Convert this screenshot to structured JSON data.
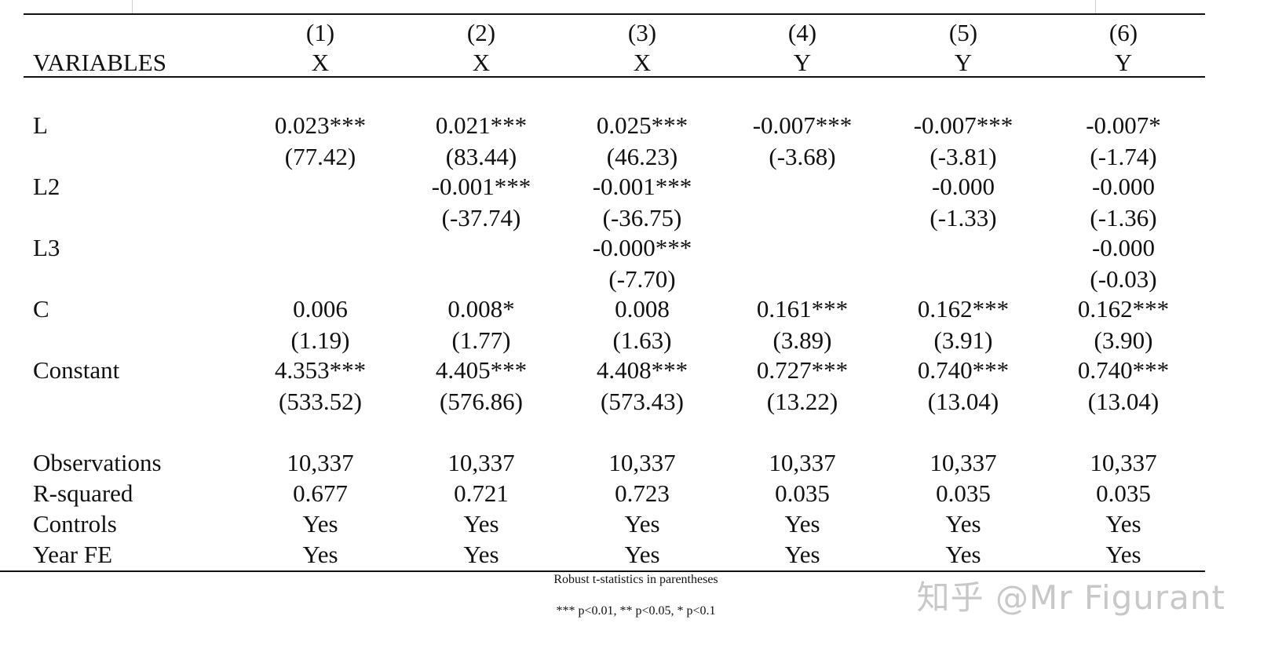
{
  "header": {
    "col_numbers": [
      "(1)",
      "(2)",
      "(3)",
      "(4)",
      "(5)",
      "(6)"
    ],
    "variables_label": "VARIABLES",
    "dep_vars": [
      "X",
      "X",
      "X",
      "Y",
      "Y",
      "Y"
    ]
  },
  "rows": [
    {
      "label": "L",
      "coef": [
        "0.023***",
        "0.021***",
        "0.025***",
        "-0.007***",
        "-0.007***",
        "-0.007*"
      ],
      "tstat": [
        "(77.42)",
        "(83.44)",
        "(46.23)",
        "(-3.68)",
        "(-3.81)",
        "(-1.74)"
      ]
    },
    {
      "label": "L2",
      "coef": [
        "",
        "-0.001***",
        "-0.001***",
        "",
        "-0.000",
        "-0.000"
      ],
      "tstat": [
        "",
        "(-37.74)",
        "(-36.75)",
        "",
        "(-1.33)",
        "(-1.36)"
      ]
    },
    {
      "label": "L3",
      "coef": [
        "",
        "",
        "-0.000***",
        "",
        "",
        "-0.000"
      ],
      "tstat": [
        "",
        "",
        "(-7.70)",
        "",
        "",
        "(-0.03)"
      ]
    },
    {
      "label": "C",
      "coef": [
        "0.006",
        "0.008*",
        "0.008",
        "0.161***",
        "0.162***",
        "0.162***"
      ],
      "tstat": [
        "(1.19)",
        "(1.77)",
        "(1.63)",
        "(3.89)",
        "(3.91)",
        "(3.90)"
      ]
    },
    {
      "label": "Constant",
      "coef": [
        "4.353***",
        "4.405***",
        "4.408***",
        "0.727***",
        "0.740***",
        "0.740***"
      ],
      "tstat": [
        "(533.52)",
        "(576.86)",
        "(573.43)",
        "(13.22)",
        "(13.04)",
        "(13.04)"
      ]
    }
  ],
  "stats": [
    {
      "label": "Observations",
      "values": [
        "10,337",
        "10,337",
        "10,337",
        "10,337",
        "10,337",
        "10,337"
      ]
    },
    {
      "label": "R-squared",
      "values": [
        "0.677",
        "0.721",
        "0.723",
        "0.035",
        "0.035",
        "0.035"
      ]
    },
    {
      "label": "Controls",
      "values": [
        "Yes",
        "Yes",
        "Yes",
        "Yes",
        "Yes",
        "Yes"
      ]
    },
    {
      "label": "Year FE",
      "values": [
        "Yes",
        "Yes",
        "Yes",
        "Yes",
        "Yes",
        "Yes"
      ]
    }
  ],
  "notes": {
    "line1": "Robust t-statistics in parentheses",
    "line2": "*** p<0.01, ** p<0.05, * p<0.1"
  },
  "watermark": "知乎 @Mr Figurant"
}
